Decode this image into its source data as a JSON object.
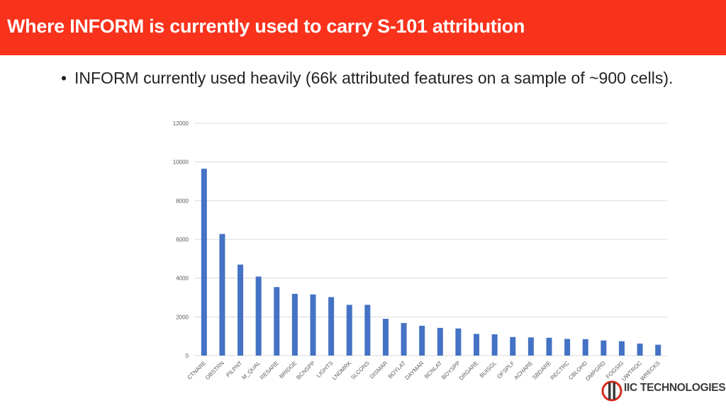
{
  "header": {
    "title": "Where INFORM is currently used to carry S-101 attribution"
  },
  "bullet": {
    "marker": "•",
    "text": "INFORM currently used heavily (66k attributed features on a sample of ~900 cells)."
  },
  "logo": {
    "text": "IIC TECHNOLOGIES"
  },
  "colors": {
    "header_bg": "#f9321c",
    "bar": "#4472c4",
    "grid": "#d9d9d9"
  },
  "chart_data": {
    "type": "bar",
    "title": "",
    "xlabel": "",
    "ylabel": "",
    "ylim": [
      0,
      12000
    ],
    "yticks": [
      0,
      2000,
      4000,
      6000,
      8000,
      10000,
      12000
    ],
    "grid": true,
    "categories": [
      "CTNARE",
      "OBSTRN",
      "PILPNT",
      "M_QUAL",
      "RESARE",
      "BRIDGE",
      "BCNSPP",
      "LIGHTS",
      "LNDMRK",
      "SLCONS",
      "DISMAR",
      "BOYLAT",
      "DAYMAR",
      "BCNLAT",
      "BOYSPP",
      "DRGARE",
      "BUISGL",
      "OFSPLF",
      "ACHARE",
      "SBDARE",
      "RECTRC",
      "CBLOHD",
      "DMPGRD",
      "FOGSIG",
      "UWTROC",
      "WRECKS"
    ],
    "values": [
      9650,
      6280,
      4700,
      4080,
      3540,
      3190,
      3160,
      3020,
      2620,
      2620,
      1900,
      1680,
      1540,
      1430,
      1400,
      1120,
      1100,
      960,
      940,
      920,
      860,
      850,
      780,
      740,
      620,
      560
    ]
  }
}
